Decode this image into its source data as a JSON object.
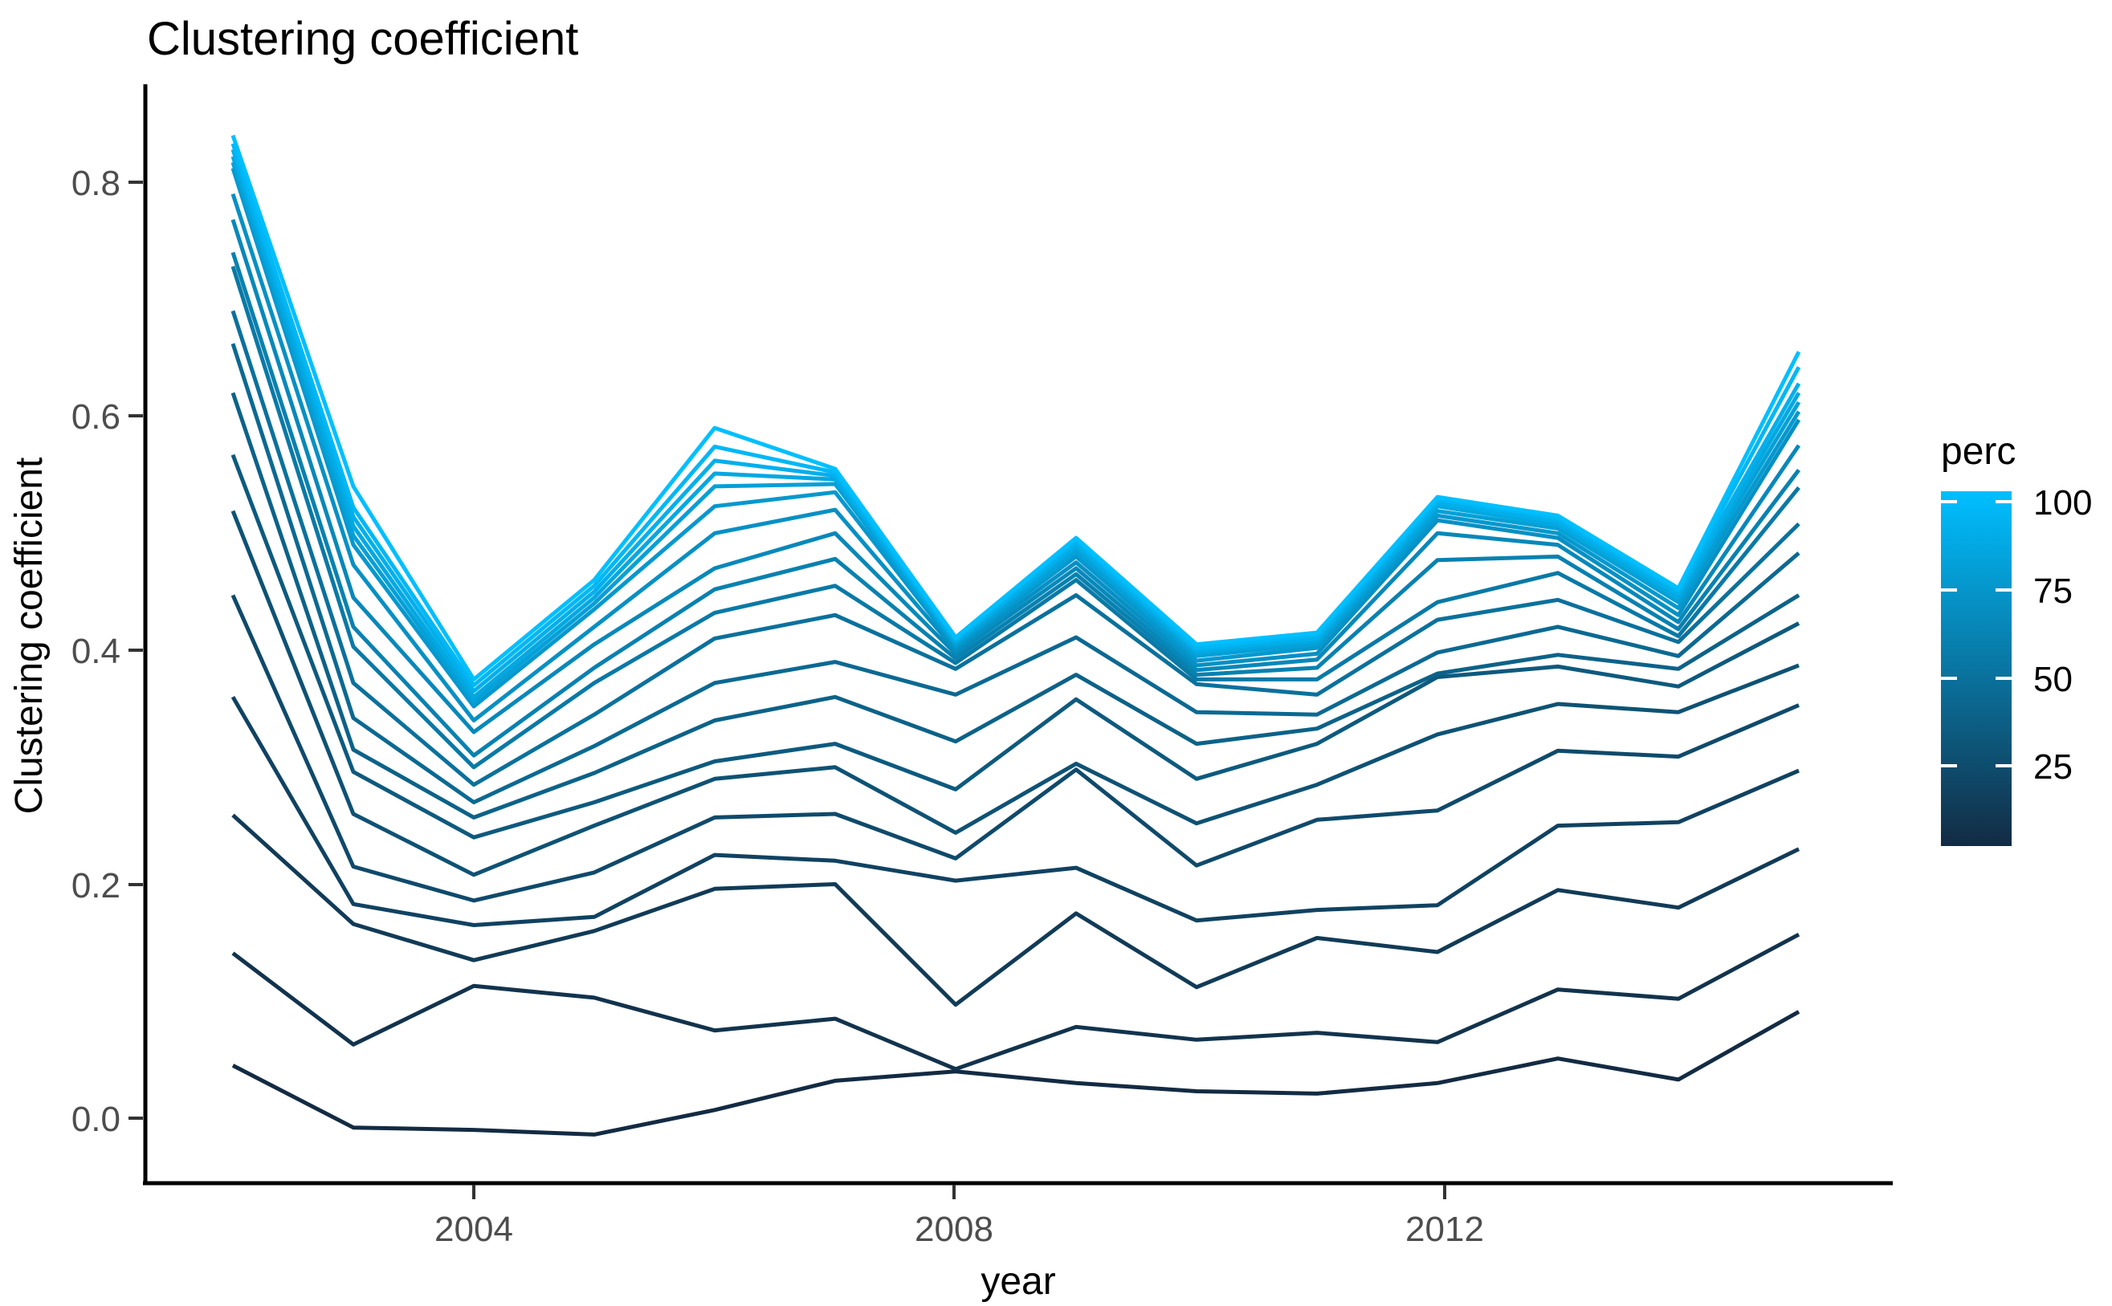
{
  "title": "Clustering coefficient",
  "axes": {
    "x_label": "year",
    "y_label": "Clustering coefficient",
    "x_tick_labels": [
      "2004",
      "2008",
      "2012"
    ],
    "y_tick_labels": [
      "0.8",
      "0.6",
      "0.4",
      "0.2",
      "0.0"
    ]
  },
  "legend": {
    "title": "perc",
    "tick_labels": [
      "100",
      "75",
      "50",
      "25"
    ],
    "gradient_high": "#00BFFF",
    "gradient_low": "#132B43",
    "domain": [
      5,
      100
    ]
  },
  "colors": {
    "background": "#FFFFFF",
    "axis_line": "#000000",
    "tick_mark": "#333333",
    "tick_text": "#4D4D4D",
    "title_text": "#000000"
  },
  "chart_data": {
    "type": "line",
    "title": "Clustering coefficient",
    "xlabel": "year",
    "ylabel": "Clustering coefficient",
    "x": [
      2002,
      2003,
      2004,
      2005,
      2006,
      2007,
      2008,
      2009,
      2010,
      2011,
      2012,
      2013,
      2014,
      2015
    ],
    "xticks": [
      2004,
      2008,
      2012
    ],
    "yticks": [
      0.0,
      0.2,
      0.4,
      0.6,
      0.8
    ],
    "ylim": [
      -0.06,
      0.88
    ],
    "xlim": [
      2001.3,
      2015.8
    ],
    "grid": false,
    "legend_position": "right",
    "legend_title": "perc",
    "color_scale": {
      "low": "#132B43",
      "high": "#00BFFF",
      "domain": [
        5,
        100
      ]
    },
    "series": [
      {
        "name": "perc 5",
        "perc": 5,
        "values": [
          0.045,
          -0.008,
          -0.01,
          -0.014,
          0.007,
          0.032,
          0.04,
          0.03,
          0.023,
          0.021,
          0.03,
          0.051,
          0.033,
          0.091
        ]
      },
      {
        "name": "perc 10",
        "perc": 10,
        "values": [
          0.141,
          0.063,
          0.113,
          0.103,
          0.075,
          0.085,
          0.042,
          0.078,
          0.067,
          0.073,
          0.065,
          0.11,
          0.102,
          0.157
        ]
      },
      {
        "name": "perc 15",
        "perc": 15,
        "values": [
          0.259,
          0.166,
          0.135,
          0.16,
          0.196,
          0.2,
          0.097,
          0.175,
          0.112,
          0.154,
          0.142,
          0.195,
          0.18,
          0.23
        ]
      },
      {
        "name": "perc 20",
        "perc": 20,
        "values": [
          0.36,
          0.183,
          0.165,
          0.172,
          0.225,
          0.22,
          0.203,
          0.214,
          0.169,
          0.178,
          0.182,
          0.25,
          0.253,
          0.297
        ]
      },
      {
        "name": "perc 25",
        "perc": 25,
        "values": [
          0.447,
          0.215,
          0.186,
          0.21,
          0.257,
          0.26,
          0.222,
          0.298,
          0.216,
          0.255,
          0.263,
          0.314,
          0.309,
          0.353
        ]
      },
      {
        "name": "perc 30",
        "perc": 30,
        "values": [
          0.519,
          0.26,
          0.208,
          0.25,
          0.29,
          0.3,
          0.244,
          0.303,
          0.252,
          0.285,
          0.328,
          0.354,
          0.347,
          0.387
        ]
      },
      {
        "name": "perc 35",
        "perc": 35,
        "values": [
          0.567,
          0.296,
          0.24,
          0.27,
          0.305,
          0.32,
          0.281,
          0.358,
          0.29,
          0.32,
          0.377,
          0.386,
          0.369,
          0.423
        ]
      },
      {
        "name": "perc 40",
        "perc": 40,
        "values": [
          0.62,
          0.315,
          0.257,
          0.295,
          0.34,
          0.36,
          0.322,
          0.379,
          0.32,
          0.333,
          0.38,
          0.396,
          0.384,
          0.447
        ]
      },
      {
        "name": "perc 45",
        "perc": 45,
        "values": [
          0.662,
          0.342,
          0.27,
          0.318,
          0.372,
          0.39,
          0.362,
          0.411,
          0.347,
          0.345,
          0.398,
          0.42,
          0.395,
          0.483
        ]
      },
      {
        "name": "perc 50",
        "perc": 50,
        "values": [
          0.69,
          0.372,
          0.285,
          0.345,
          0.41,
          0.43,
          0.384,
          0.447,
          0.371,
          0.362,
          0.426,
          0.443,
          0.407,
          0.508
        ]
      },
      {
        "name": "perc 55",
        "perc": 55,
        "values": [
          0.728,
          0.403,
          0.3,
          0.372,
          0.432,
          0.455,
          0.389,
          0.46,
          0.375,
          0.375,
          0.441,
          0.466,
          0.412,
          0.539
        ]
      },
      {
        "name": "perc 60",
        "perc": 60,
        "values": [
          0.74,
          0.42,
          0.31,
          0.385,
          0.452,
          0.478,
          0.393,
          0.465,
          0.379,
          0.385,
          0.477,
          0.48,
          0.418,
          0.554
        ]
      },
      {
        "name": "perc 65",
        "perc": 65,
        "values": [
          0.768,
          0.445,
          0.33,
          0.405,
          0.47,
          0.5,
          0.397,
          0.47,
          0.383,
          0.392,
          0.5,
          0.49,
          0.424,
          0.575
        ]
      },
      {
        "name": "perc 70",
        "perc": 70,
        "values": [
          0.79,
          0.473,
          0.34,
          0.42,
          0.5,
          0.52,
          0.4,
          0.475,
          0.387,
          0.397,
          0.511,
          0.496,
          0.43,
          0.597
        ]
      },
      {
        "name": "perc 75",
        "perc": 75,
        "values": [
          0.812,
          0.49,
          0.352,
          0.435,
          0.523,
          0.535,
          0.403,
          0.48,
          0.391,
          0.402,
          0.515,
          0.5,
          0.436,
          0.604
        ]
      },
      {
        "name": "perc 80",
        "perc": 80,
        "values": [
          0.817,
          0.498,
          0.356,
          0.44,
          0.54,
          0.542,
          0.405,
          0.484,
          0.395,
          0.405,
          0.519,
          0.504,
          0.441,
          0.612
        ]
      },
      {
        "name": "perc 85",
        "perc": 85,
        "values": [
          0.822,
          0.506,
          0.36,
          0.445,
          0.551,
          0.546,
          0.407,
          0.488,
          0.398,
          0.408,
          0.523,
          0.507,
          0.445,
          0.62
        ]
      },
      {
        "name": "perc 90",
        "perc": 90,
        "values": [
          0.828,
          0.514,
          0.365,
          0.45,
          0.562,
          0.549,
          0.408,
          0.491,
          0.4,
          0.41,
          0.526,
          0.51,
          0.448,
          0.628
        ]
      },
      {
        "name": "perc 95",
        "perc": 95,
        "values": [
          0.833,
          0.522,
          0.37,
          0.455,
          0.574,
          0.552,
          0.41,
          0.494,
          0.402,
          0.413,
          0.529,
          0.513,
          0.451,
          0.642
        ]
      },
      {
        "name": "perc 100",
        "perc": 100,
        "values": [
          0.84,
          0.54,
          0.375,
          0.46,
          0.59,
          0.555,
          0.411,
          0.496,
          0.405,
          0.415,
          0.531,
          0.515,
          0.453,
          0.655
        ]
      }
    ]
  }
}
